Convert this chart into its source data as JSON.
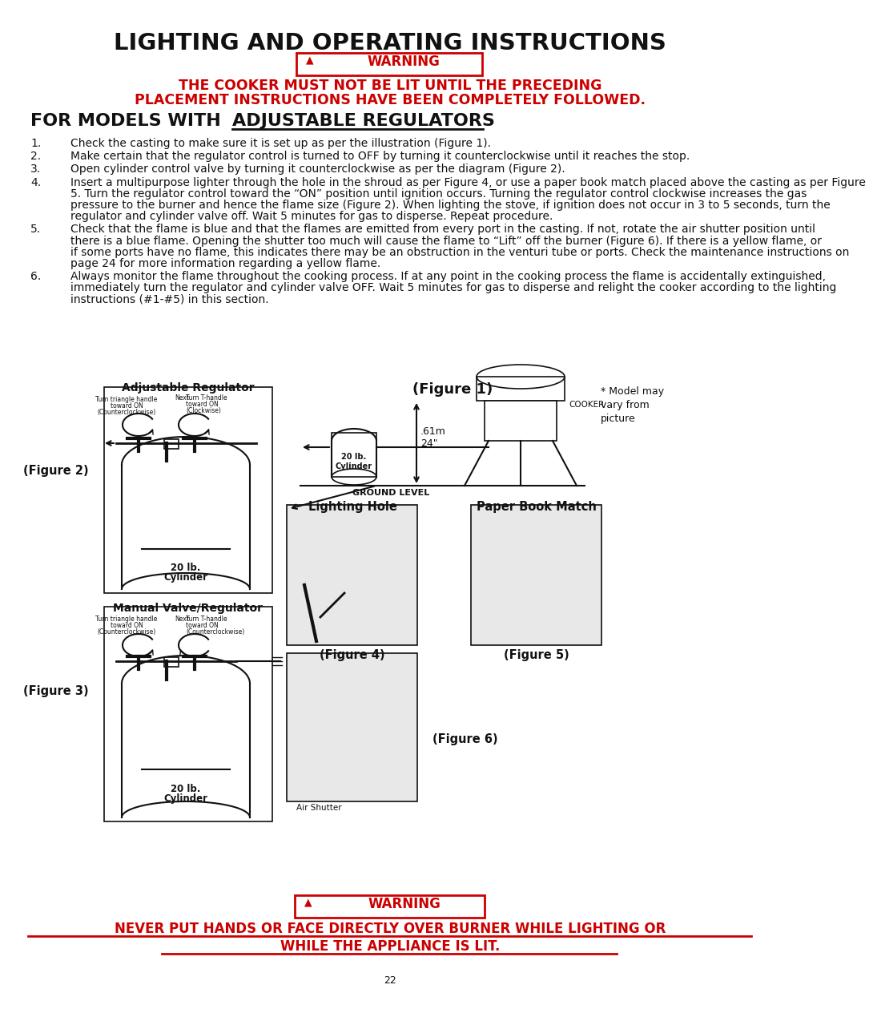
{
  "title": "LIGHTING AND OPERATING INSTRUCTIONS",
  "warning_line1": "THE COOKER MUST NOT BE LIT UNTIL THE PRECEDING",
  "warning_line2": "PLACEMENT INSTRUCTIONS HAVE BEEN COMPLETELY FOLLOWED.",
  "section_prefix": "FOR MODELS WITH ",
  "section_underlined": "ADJUSTABLE REGULATORS",
  "items": [
    [
      "1.",
      "Check the casting to make sure it is set up as per the illustration (",
      "Figure 1",
      ")."
    ],
    [
      "2.",
      "Make certain that the regulator control is turned to OFF by turning it counterclockwise until it reaches the stop.",
      "",
      ""
    ],
    [
      "3.",
      "Open cylinder control valve by turning it counterclockwise as per the diagram (",
      "Figure 2",
      ")."
    ],
    [
      "4.",
      "Insert a multipurpose lighter through the hole in the shroud as per ",
      "Figure 4",
      ", or use a paper book match placed above the casting as per ",
      "Figure 5",
      ".  Turn the regulator control toward the “ON” position until ignition occurs. Turning the regulator control clockwise increases the gas pressure to the burner and hence the flame size (",
      "Figure 2",
      "). When lighting the stove, if ignition does not occur in 3 to 5 seconds, turn the regulator and cylinder valve off. Wait 5 minutes for gas to disperse. Repeat procedure."
    ],
    [
      "5.",
      "Check that the flame is blue and that the flames are emitted from every port in the casting. If not, rotate the air shutter position until there is a blue flame. Opening the shutter too much will cause the flame to “Lift” off the burner (",
      "Figure 6",
      "). If there is a yellow flame, or if some ports have no flame, this indicates there may be an obstruction in the venturi tube or ports. Check the maintenance instructions on page 24 for more information regarding a yellow flame."
    ],
    [
      "6.",
      "Always monitor the flame throughout the cooking process. If at any point in the cooking process the flame is accidentally extinguished, immediately turn the regulator and cylinder valve OFF.  Wait 5 minutes for gas to disperse and relight the cooker according to the lighting instructions (#1-#5) in this section.",
      "",
      ""
    ]
  ],
  "fig2_label": "(Figure 2)",
  "fig3_label": "(Figure 3)",
  "fig1_label": "(Figure 1)",
  "fig4_label": "(Figure 4)",
  "fig5_label": "(Figure 5)",
  "fig6_label": "(Figure 6)",
  "adj_reg_title": "Adjustable Regulator",
  "man_valve_title": "Manual Valve/Regulator",
  "lighting_hole_title": "Lighting Hole",
  "paper_match_title": "Paper Book Match",
  "model_note": "* Model may\nvary from\npicture",
  "cooker_label": "COOKER",
  "ground_label": "GROUND LEVEL",
  "measurement1": ".61m",
  "measurement2": "24\"",
  "air_shutter_label": "Air Shutter",
  "cylinder_label1": "20 lb.\nCylinder",
  "bottom_warn1": "NEVER PUT HANDS OR FACE DIRECTLY OVER BURNER WHILE LIGHTING OR",
  "bottom_warn2": "WHILE THE APPLIANCE IS LIT.",
  "page_num": "22",
  "small_labels_fig2": [
    "Turn triangle handle",
    "toward ON",
    "(Counterclockwise)",
    "Next",
    "Turn T-handle",
    "toward ON",
    "(Clockwise)"
  ],
  "small_labels_fig3": [
    "Turn triangle handle",
    "toward ON",
    "(Counterclockwise)",
    "Next",
    "Turn T-handle",
    "toward ON",
    "(Counterclockwise)"
  ]
}
